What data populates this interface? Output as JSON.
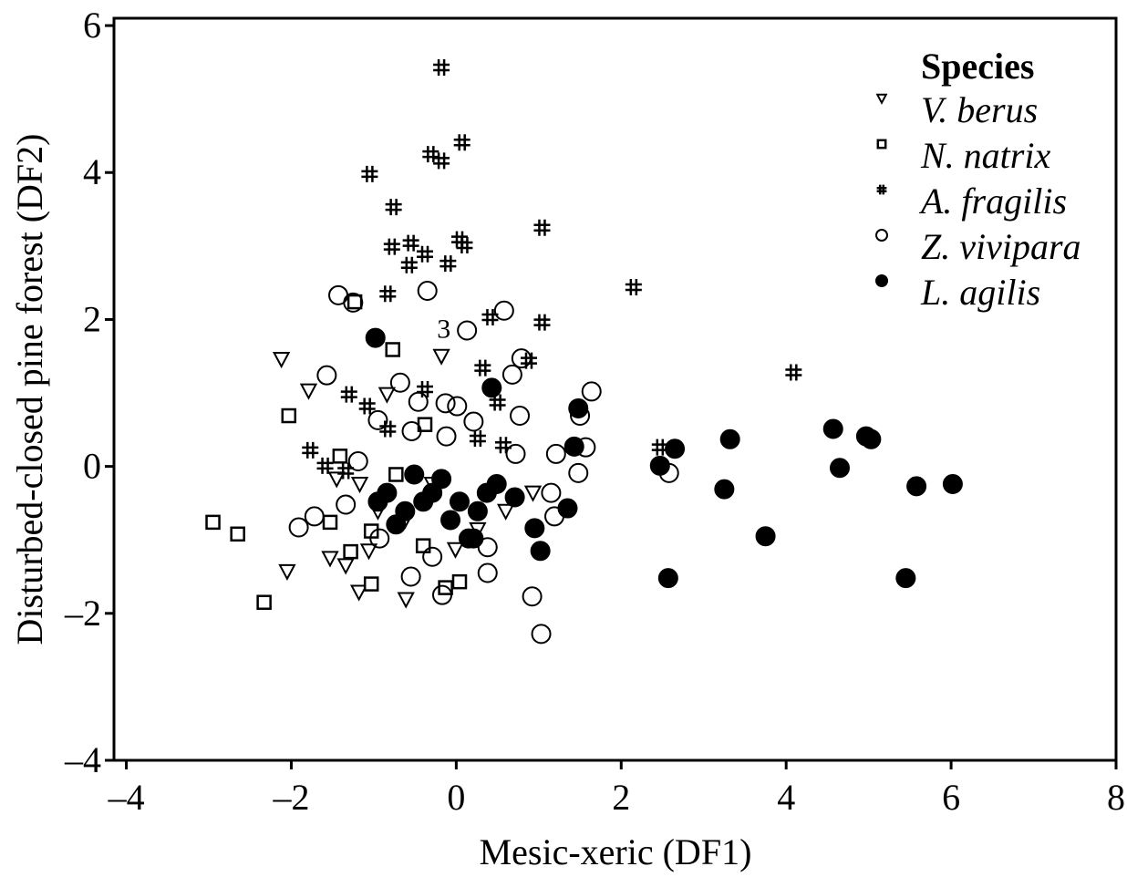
{
  "chart_data": {
    "type": "scatter",
    "x_label": "Mesic-xeric (DF1)",
    "y_label": "Disturbed-closed pine forest (DF2)",
    "legend_title": "Species",
    "legend": "upper right",
    "xlim": [
      -4.15,
      8
    ],
    "ylim": [
      -4,
      6.1
    ],
    "xticks": [
      {
        "value": -4,
        "label": "–4"
      },
      {
        "value": -2,
        "label": "–2"
      },
      0,
      2,
      4,
      6,
      8
    ],
    "yticks": [
      {
        "value": -4,
        "label": "–4"
      },
      {
        "value": -2,
        "label": "–2"
      },
      0,
      2,
      4,
      6
    ],
    "grid": false,
    "annotations": [
      {
        "text": "3",
        "x": -0.15,
        "y": 1.9
      }
    ],
    "series": [
      {
        "name": "V. berus",
        "marker": "triangle-down",
        "color": "#000000",
        "x": [
          -2.12,
          -0.18,
          -1.79,
          -0.84,
          -2.05,
          -1.53,
          -1.34,
          -1.18,
          -0.61,
          -1.06,
          -1.45,
          -0.95,
          -0.01,
          -0.62,
          0.26,
          -0.29,
          0.6,
          -1.17,
          0.93
        ],
        "values": [
          1.46,
          1.5,
          1.03,
          0.98,
          -1.43,
          -1.25,
          -1.35,
          -1.71,
          -1.81,
          -1.15,
          -0.17,
          -0.61,
          -1.13,
          -0.73,
          -0.86,
          -0.24,
          -0.61,
          -0.24,
          -0.36
        ]
      },
      {
        "name": "N. natrix",
        "marker": "square",
        "color": "#000000",
        "x": [
          -2.95,
          -2.65,
          -2.33,
          -2.03,
          -1.53,
          -1.03,
          -0.77,
          -0.38,
          -0.13,
          -1.41,
          -1.28,
          -1.03,
          -0.73,
          -0.4,
          0.04,
          -1.23
        ],
        "values": [
          -0.76,
          -0.92,
          -1.85,
          0.69,
          -0.76,
          -1.6,
          1.59,
          0.57,
          -1.65,
          0.14,
          -1.16,
          -0.88,
          -0.11,
          -1.08,
          -1.57,
          2.24
        ]
      },
      {
        "name": "A. fragilis",
        "marker": "asterisk",
        "color": "#000000",
        "x": [
          -0.18,
          0.07,
          -0.31,
          -0.18,
          -1.05,
          -0.76,
          1.04,
          0.04,
          0.1,
          -0.78,
          -0.55,
          -0.38,
          -0.57,
          -0.1,
          2.15,
          -0.83,
          1.04,
          0.41,
          0.88,
          0.32,
          4.09,
          -0.38,
          -1.3,
          -1.08,
          0.5,
          -0.83,
          -1.77,
          -1.59,
          -1.34,
          0.57,
          2.47,
          0.26
        ],
        "values": [
          5.43,
          4.41,
          4.25,
          4.16,
          3.98,
          3.53,
          3.25,
          3.09,
          3.01,
          2.99,
          3.04,
          2.89,
          2.74,
          2.76,
          2.44,
          2.35,
          1.96,
          2.03,
          1.44,
          1.34,
          1.28,
          1.05,
          0.98,
          0.82,
          0.87,
          0.51,
          0.22,
          0.01,
          -0.06,
          0.29,
          0.26,
          0.38
        ]
      },
      {
        "name": "Z. vivipara",
        "marker": "circle-open",
        "color": "#000000",
        "x": [
          -1.43,
          -1.25,
          -0.35,
          0.58,
          0.13,
          -1.57,
          0.79,
          0.68,
          -0.68,
          1.64,
          -0.46,
          -0.13,
          0.01,
          0.77,
          1.5,
          -0.95,
          0.21,
          -0.54,
          -0.12,
          1.57,
          1.21,
          0.72,
          -1.19,
          1.48,
          2.58,
          -1.34,
          -1.72,
          -1.91,
          1.19,
          -0.55,
          -0.17,
          0.92,
          1.03,
          0.38,
          0.38,
          -0.93,
          -0.29,
          1.15
        ],
        "values": [
          2.33,
          2.23,
          2.39,
          2.12,
          1.85,
          1.24,
          1.47,
          1.25,
          1.14,
          1.02,
          0.88,
          0.86,
          0.82,
          0.69,
          0.69,
          0.63,
          0.61,
          0.48,
          0.41,
          0.26,
          0.17,
          0.17,
          0.07,
          -0.09,
          -0.09,
          -0.52,
          -0.68,
          -0.83,
          -0.68,
          -1.5,
          -1.75,
          -1.77,
          -2.28,
          -1.45,
          -1.1,
          -0.98,
          -1.23,
          -0.36
        ]
      },
      {
        "name": "L. agilis",
        "marker": "circle-filled",
        "color": "#000000",
        "x": [
          -0.98,
          1.48,
          1.43,
          2.47,
          2.65,
          3.32,
          4.57,
          4.97,
          5.03,
          4.65,
          5.58,
          6.02,
          3.25,
          3.75,
          2.57,
          5.45,
          1.02,
          1.35,
          0.95,
          0.49,
          0.26,
          0.15,
          -0.07,
          -0.4,
          -0.62,
          -0.84,
          -0.73,
          -0.29,
          0.04,
          -0.95,
          0.37,
          0.71,
          -0.51,
          -0.18,
          0.43,
          0.21
        ],
        "values": [
          1.75,
          0.79,
          0.27,
          0.01,
          0.24,
          0.37,
          0.51,
          0.41,
          0.37,
          -0.02,
          -0.27,
          -0.24,
          -0.31,
          -0.95,
          -1.52,
          -1.52,
          -1.15,
          -0.57,
          -0.84,
          -0.24,
          -0.61,
          -0.98,
          -0.73,
          -0.48,
          -0.61,
          -0.36,
          -0.79,
          -0.36,
          -0.48,
          -0.48,
          -0.36,
          -0.42,
          -0.11,
          -0.17,
          1.07,
          -0.98
        ]
      }
    ]
  }
}
